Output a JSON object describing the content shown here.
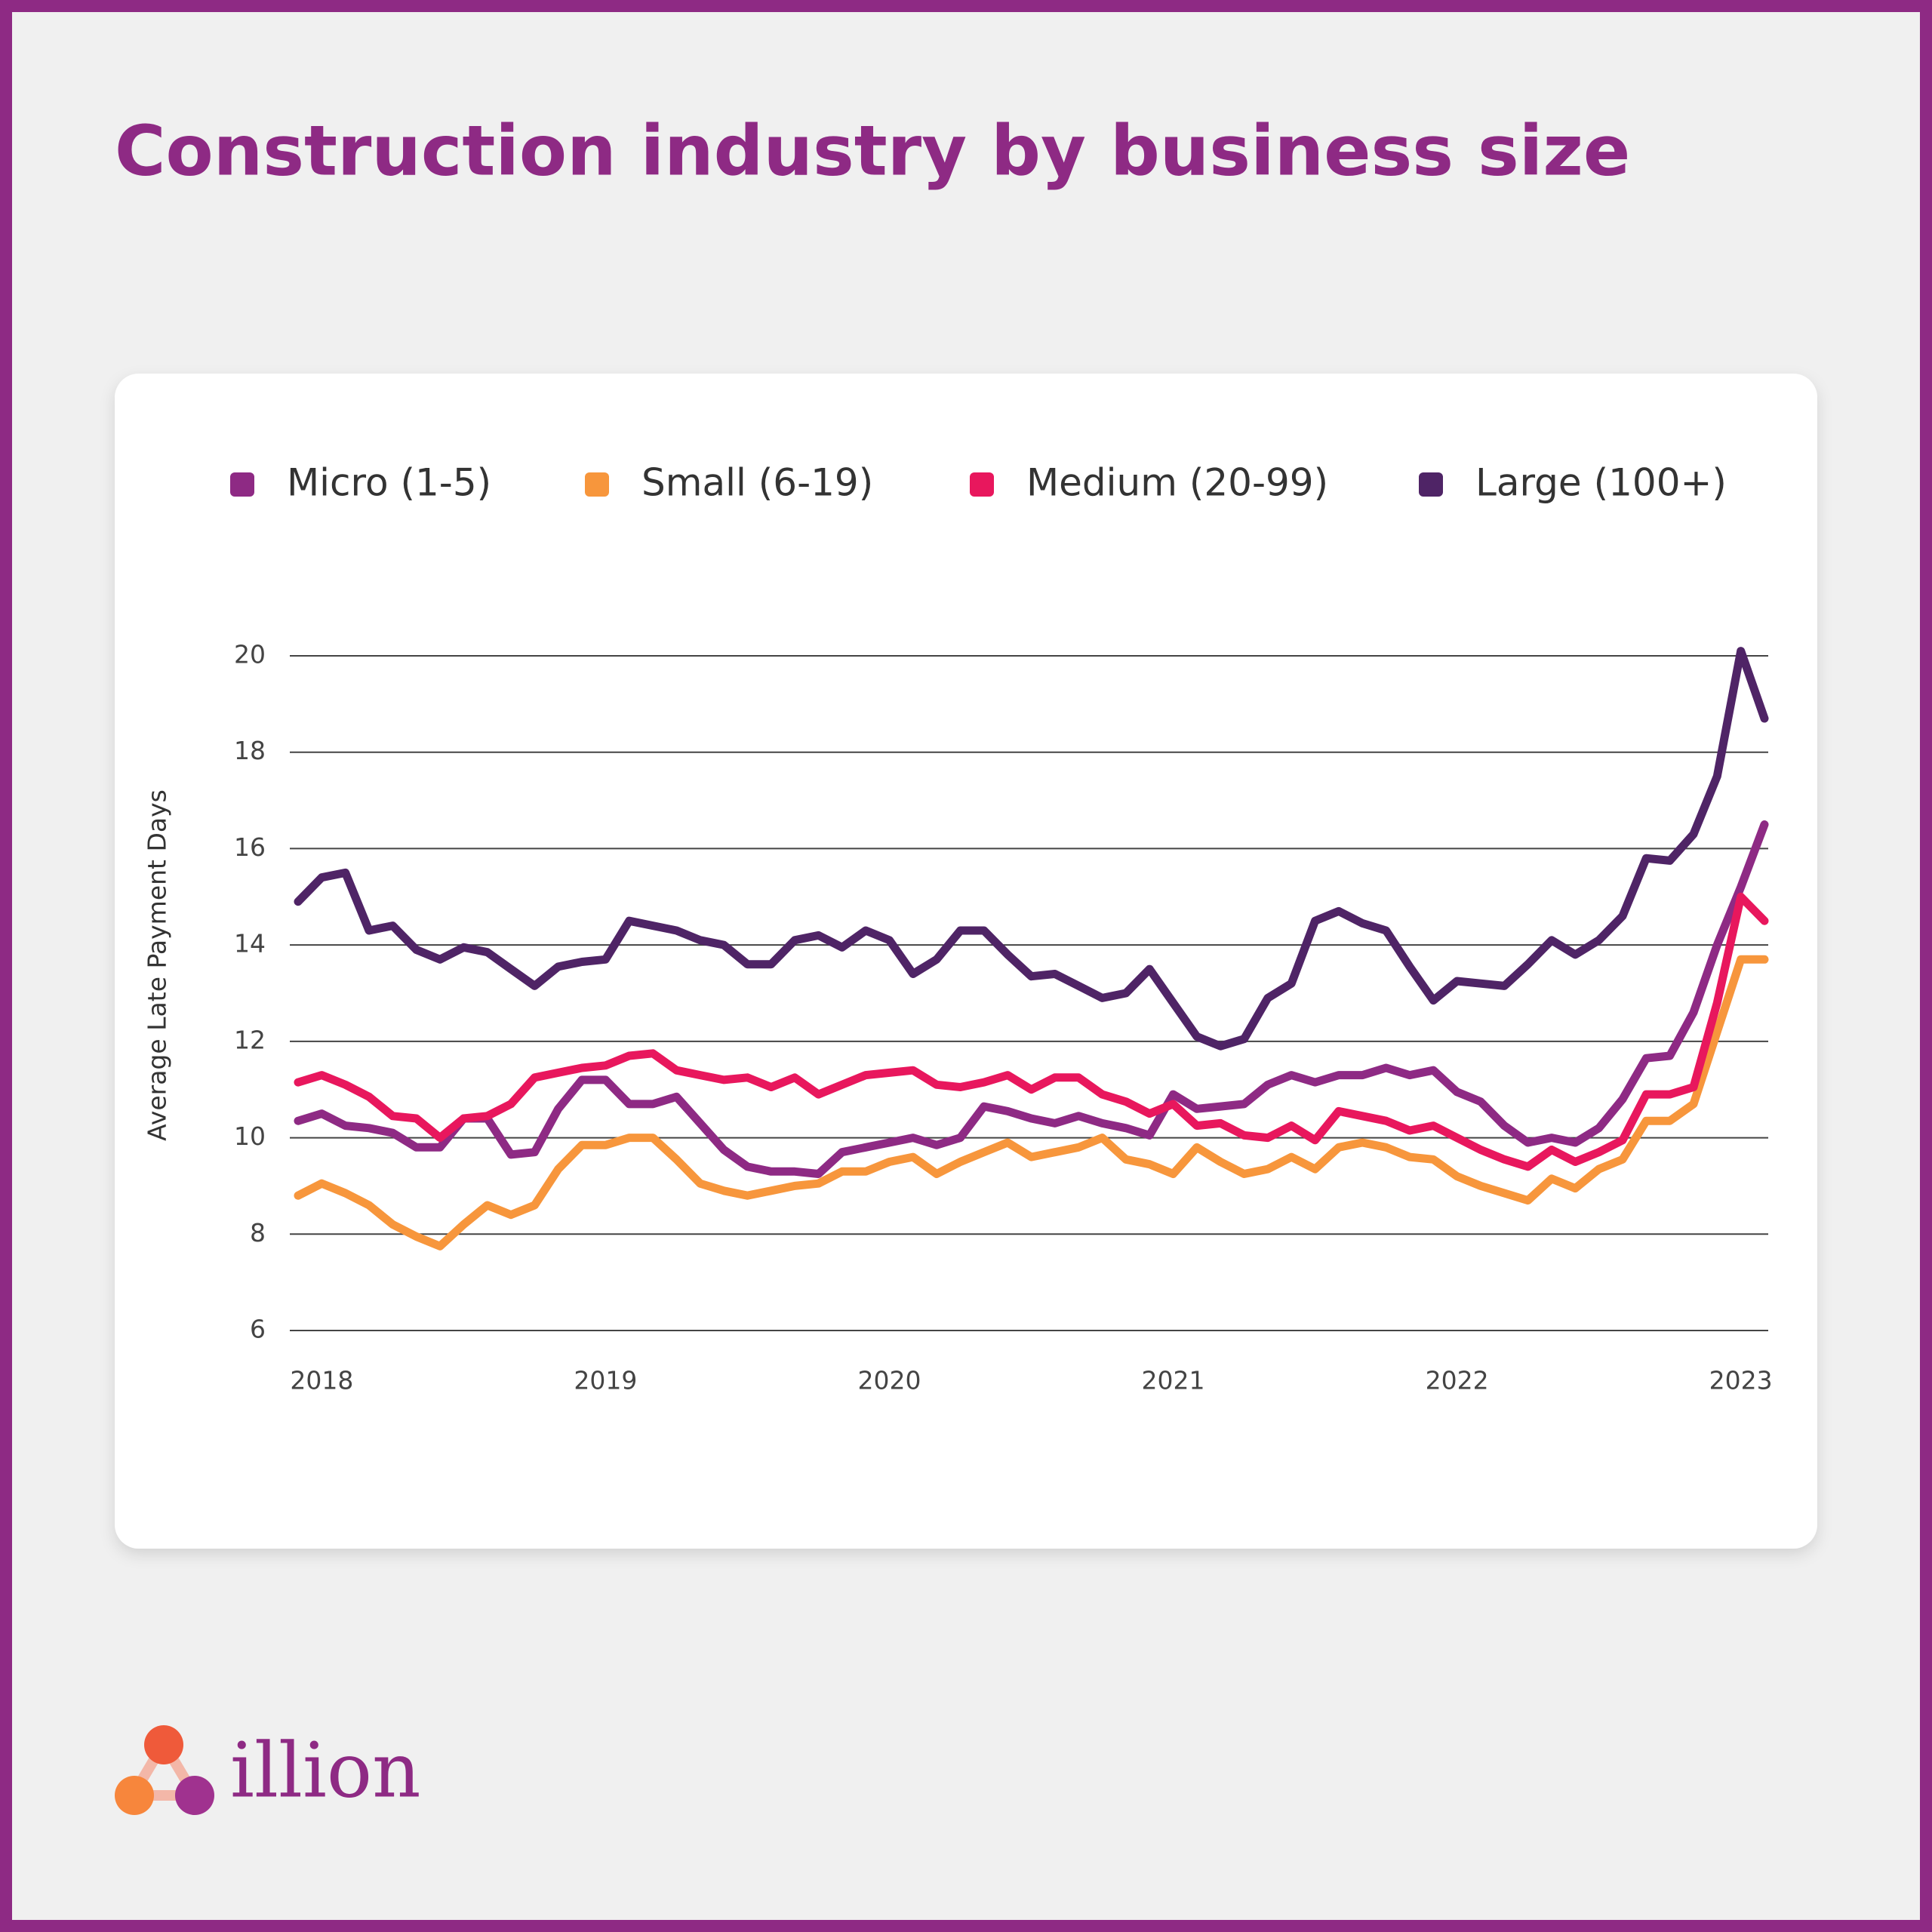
{
  "chart_data": {
    "type": "line",
    "title": "Construction industry by business size",
    "y_label": "Average Late Payment Days",
    "categories": [
      null,
      "2018",
      null,
      null,
      null,
      null,
      null,
      null,
      null,
      null,
      null,
      null,
      null,
      "2019",
      null,
      null,
      null,
      null,
      null,
      null,
      null,
      null,
      null,
      null,
      null,
      "2020",
      null,
      null,
      null,
      null,
      null,
      null,
      null,
      null,
      null,
      null,
      null,
      "2021",
      null,
      null,
      null,
      null,
      null,
      null,
      null,
      null,
      null,
      null,
      null,
      "2022",
      null,
      null,
      null,
      null,
      null,
      null,
      null,
      null,
      null,
      null,
      null,
      "2023",
      null
    ],
    "ylim": [
      6,
      20
    ],
    "yticks": [
      6,
      8,
      10,
      12,
      14,
      16,
      18,
      20
    ],
    "grid": true,
    "legend": "top",
    "series": [
      {
        "name": "Micro (1-5)",
        "color": "#8e2a84",
        "values": [
          10.35,
          10.5,
          10.25,
          10.2,
          10.1,
          9.8,
          9.8,
          10.4,
          10.4,
          9.65,
          9.7,
          10.6,
          11.2,
          11.2,
          10.7,
          10.7,
          10.85,
          10.3,
          9.75,
          9.4,
          9.3,
          9.3,
          9.25,
          9.7,
          9.8,
          9.9,
          10.0,
          9.85,
          10.0,
          10.65,
          10.55,
          10.4,
          10.3,
          10.45,
          10.3,
          10.2,
          10.05,
          10.9,
          10.6,
          10.65,
          10.7,
          11.1,
          11.3,
          11.15,
          11.3,
          11.3,
          11.45,
          11.3,
          11.4,
          10.95,
          10.75,
          10.25,
          9.9,
          10.0,
          9.9,
          10.2,
          10.8,
          11.65,
          11.7,
          12.6,
          14.0,
          15.2,
          16.5
        ]
      },
      {
        "name": "Small (6-19)",
        "color": "#f7963c",
        "values": [
          8.8,
          9.05,
          8.85,
          8.6,
          8.2,
          7.95,
          7.75,
          8.2,
          8.6,
          8.4,
          8.6,
          9.35,
          9.85,
          9.85,
          10.0,
          10.0,
          9.55,
          9.05,
          8.9,
          8.8,
          8.9,
          9.0,
          9.05,
          9.3,
          9.3,
          9.5,
          9.6,
          9.25,
          9.5,
          9.7,
          9.9,
          9.6,
          9.7,
          9.8,
          10.0,
          9.55,
          9.45,
          9.25,
          9.8,
          9.5,
          9.25,
          9.35,
          9.6,
          9.35,
          9.8,
          9.9,
          9.8,
          9.6,
          9.55,
          9.2,
          9.0,
          8.85,
          8.7,
          9.15,
          8.95,
          9.35,
          9.55,
          10.35,
          10.35,
          10.7,
          12.2,
          13.7,
          13.7
        ]
      },
      {
        "name": "Medium (20-99)",
        "color": "#e8175d",
        "values": [
          11.15,
          11.3,
          11.1,
          10.85,
          10.45,
          10.4,
          10.0,
          10.4,
          10.45,
          10.7,
          11.25,
          11.35,
          11.45,
          11.5,
          11.7,
          11.75,
          11.4,
          11.3,
          11.2,
          11.25,
          11.05,
          11.25,
          10.9,
          11.1,
          11.3,
          11.35,
          11.4,
          11.1,
          11.05,
          11.15,
          11.3,
          11.0,
          11.25,
          11.25,
          10.9,
          10.75,
          10.5,
          10.7,
          10.25,
          10.3,
          10.05,
          10.0,
          10.25,
          9.95,
          10.55,
          10.45,
          10.35,
          10.15,
          10.25,
          10.0,
          9.75,
          9.55,
          9.4,
          9.75,
          9.5,
          9.7,
          9.95,
          10.9,
          10.9,
          11.05,
          12.8,
          15.0,
          14.5
        ]
      },
      {
        "name": "Large (100+)",
        "color": "#4f2466",
        "values": [
          14.9,
          15.4,
          15.5,
          14.3,
          14.4,
          13.9,
          13.7,
          13.95,
          13.85,
          13.5,
          13.15,
          13.55,
          13.65,
          13.7,
          14.5,
          14.4,
          14.3,
          14.1,
          14.0,
          13.6,
          13.6,
          14.1,
          14.2,
          13.95,
          14.3,
          14.1,
          13.4,
          13.7,
          14.3,
          14.3,
          13.8,
          13.35,
          13.4,
          13.15,
          12.9,
          13.0,
          13.5,
          12.8,
          12.1,
          11.9,
          12.05,
          12.9,
          13.2,
          14.5,
          14.7,
          14.45,
          14.3,
          13.55,
          12.85,
          13.25,
          13.2,
          13.15,
          13.6,
          14.1,
          13.8,
          14.1,
          14.6,
          15.8,
          15.75,
          16.3,
          17.5,
          20.1,
          18.7
        ]
      }
    ]
  },
  "logo": "illion"
}
